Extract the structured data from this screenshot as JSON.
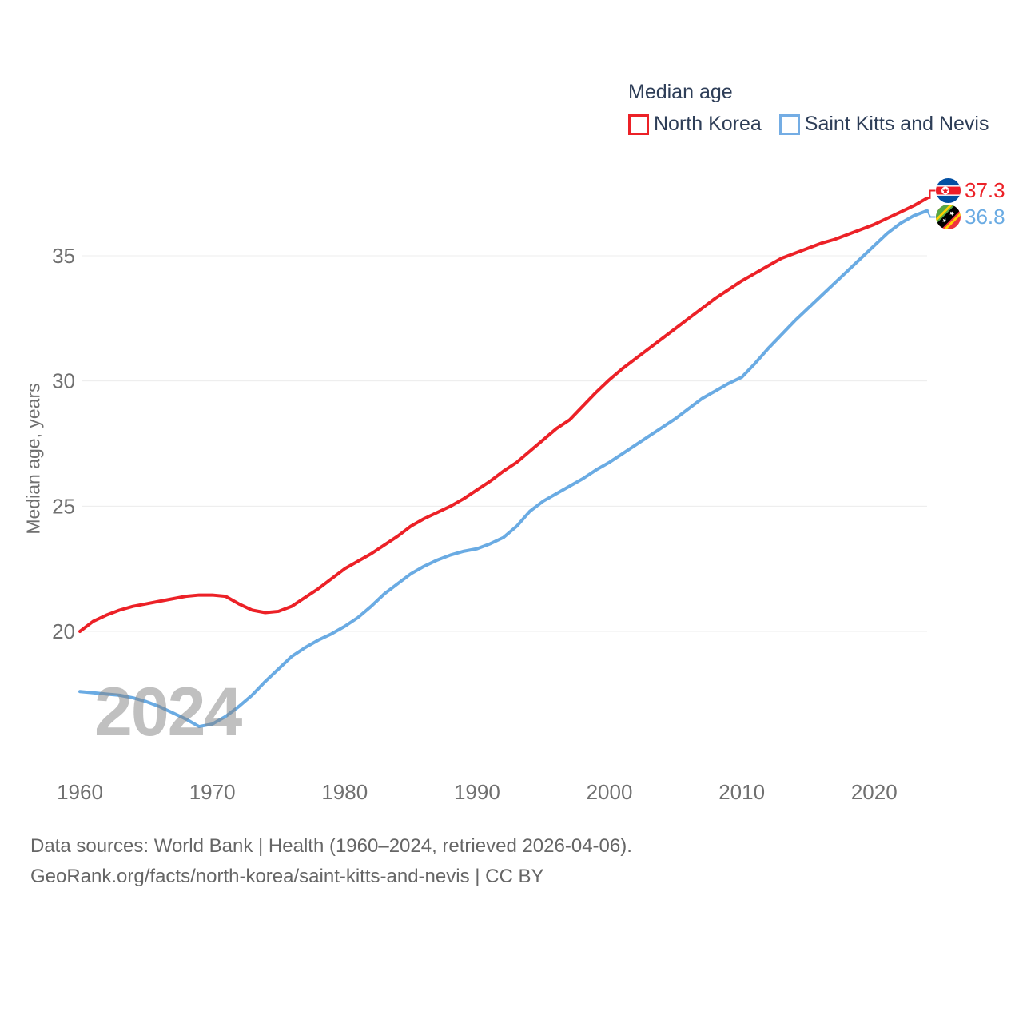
{
  "legend": {
    "title": "Median age",
    "items": [
      {
        "label": "North Korea",
        "color": "#ec2127"
      },
      {
        "label": "Saint Kitts and Nevis",
        "color": "#6aabe3"
      }
    ]
  },
  "end_labels": [
    {
      "series": "North Korea",
      "value": "37.3",
      "flag": "north-korea",
      "color": "#ec2127"
    },
    {
      "series": "Saint Kitts and Nevis",
      "value": "36.8",
      "flag": "saint-kitts-and-nevis",
      "color": "#6aabe3"
    }
  ],
  "watermark": {
    "text": "2024"
  },
  "axes": {
    "y_title": "Median age, years",
    "y_ticks": [
      35,
      30,
      25,
      20
    ],
    "x_ticks": [
      1960,
      1970,
      1980,
      1990,
      2000,
      2010,
      2020
    ]
  },
  "footer": {
    "line1": "Data sources: World Bank | Health (1960–2024, retrieved 2026-04-06).",
    "line2": "GeoRank.org/facts/north-korea/saint-kitts-and-nevis | CC BY"
  },
  "colors": {
    "north_korea": "#ec2127",
    "saint_kitts": "#6aabe3",
    "gridline": "#ececec",
    "axis_text": "#707070",
    "legend_text": "#2e3e58",
    "footer_text": "#666666"
  },
  "chart_data": {
    "type": "line",
    "title": "Median age",
    "ylabel": "Median age, years",
    "grid": "horizontal",
    "legend_position": "top-right",
    "xlim": [
      1956.4,
      2031.2
    ],
    "ylim": [
      13.6,
      38.6
    ],
    "x": [
      1960,
      1961,
      1962,
      1963,
      1964,
      1965,
      1966,
      1967,
      1968,
      1969,
      1970,
      1971,
      1972,
      1973,
      1974,
      1975,
      1976,
      1977,
      1978,
      1979,
      1980,
      1981,
      1982,
      1983,
      1984,
      1985,
      1986,
      1987,
      1988,
      1989,
      1990,
      1991,
      1992,
      1993,
      1994,
      1995,
      1996,
      1997,
      1998,
      1999,
      2000,
      2001,
      2002,
      2003,
      2004,
      2005,
      2006,
      2007,
      2008,
      2009,
      2010,
      2011,
      2012,
      2013,
      2014,
      2015,
      2016,
      2017,
      2018,
      2019,
      2020,
      2021,
      2022,
      2023,
      2024
    ],
    "series": [
      {
        "name": "North Korea",
        "color": "#ec2127",
        "end_label": "37.3",
        "values": [
          20.0,
          20.4,
          20.65,
          20.85,
          21.0,
          21.1,
          21.2,
          21.3,
          21.4,
          21.45,
          21.45,
          21.4,
          21.1,
          20.85,
          20.75,
          20.8,
          21.0,
          21.35,
          21.7,
          22.1,
          22.5,
          22.8,
          23.1,
          23.45,
          23.8,
          24.2,
          24.5,
          24.75,
          25.0,
          25.3,
          25.65,
          26.0,
          26.4,
          26.75,
          27.2,
          27.65,
          28.1,
          28.45,
          29.0,
          29.55,
          30.05,
          30.5,
          30.9,
          31.3,
          31.7,
          32.1,
          32.5,
          32.9,
          33.3,
          33.65,
          34.0,
          34.3,
          34.6,
          34.9,
          35.1,
          35.3,
          35.5,
          35.65,
          35.85,
          36.05,
          36.25,
          36.5,
          36.75,
          37.0,
          37.3
        ]
      },
      {
        "name": "Saint Kitts and Nevis",
        "color": "#6aabe3",
        "end_label": "36.8",
        "values": [
          17.6,
          17.55,
          17.5,
          17.45,
          17.35,
          17.2,
          17.0,
          16.75,
          16.5,
          16.2,
          16.3,
          16.6,
          17.0,
          17.45,
          18.0,
          18.5,
          19.0,
          19.35,
          19.65,
          19.9,
          20.2,
          20.55,
          21.0,
          21.5,
          21.9,
          22.3,
          22.6,
          22.85,
          23.05,
          23.2,
          23.3,
          23.5,
          23.75,
          24.2,
          24.8,
          25.2,
          25.5,
          25.8,
          26.1,
          26.45,
          26.75,
          27.1,
          27.45,
          27.8,
          28.15,
          28.5,
          28.9,
          29.3,
          29.6,
          29.9,
          30.15,
          30.7,
          31.3,
          31.85,
          32.4,
          32.9,
          33.4,
          33.9,
          34.4,
          34.9,
          35.4,
          35.9,
          36.3,
          36.6,
          36.8
        ]
      }
    ]
  }
}
